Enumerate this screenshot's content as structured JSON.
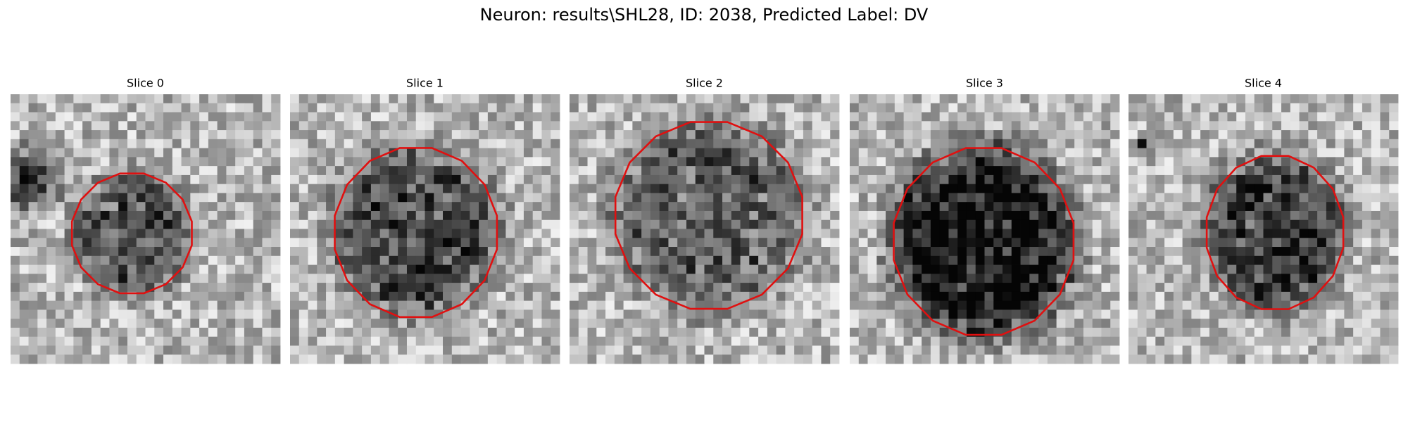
{
  "title": "Neuron: results\\SHL28, ID: 2038, Predicted Label: DV",
  "panels": [
    {
      "label": "Slice 0"
    },
    {
      "label": "Slice 1"
    },
    {
      "label": "Slice 2"
    },
    {
      "label": "Slice 3"
    },
    {
      "label": "Slice 4"
    }
  ]
}
